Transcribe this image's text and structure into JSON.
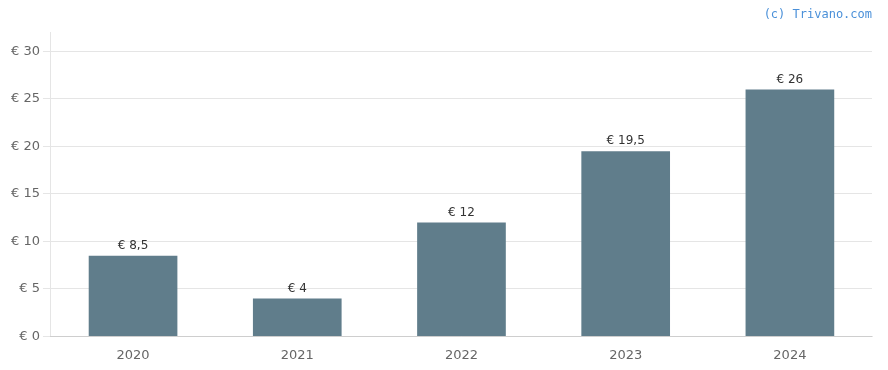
{
  "chart_data": {
    "type": "bar",
    "annotations": [
      "(c) Trivano.com"
    ],
    "categories": [
      "2020",
      "2021",
      "2022",
      "2023",
      "2024"
    ],
    "values": [
      8.5,
      4.0,
      12.0,
      19.5,
      26.0
    ],
    "value_labels": [
      "€ 8,5",
      "€ 4",
      "€ 12",
      "€ 19,5",
      "€ 26"
    ],
    "data_labels": true,
    "color": "#607d8b",
    "ylim": [
      0,
      32
    ],
    "yticks": [
      {
        "value": 0,
        "label": "€ 0"
      },
      {
        "value": 5,
        "label": "€ 5"
      },
      {
        "value": 10,
        "label": "€ 10"
      },
      {
        "value": 15,
        "label": "€ 15"
      },
      {
        "value": 20,
        "label": "€ 20"
      },
      {
        "value": 25,
        "label": "€ 25"
      },
      {
        "value": 30,
        "label": "€ 30"
      }
    ],
    "grid": true
  }
}
